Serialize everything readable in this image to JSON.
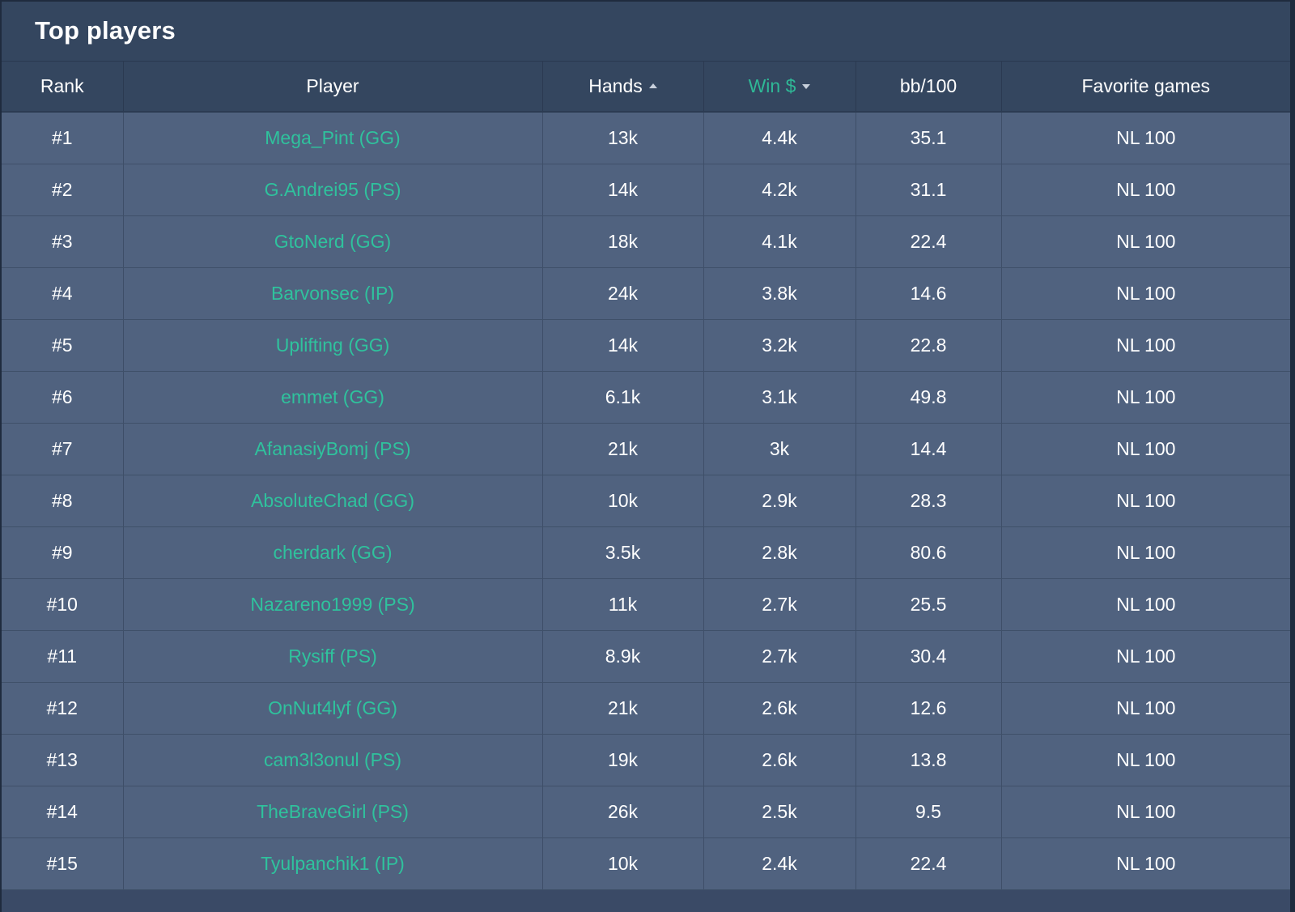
{
  "page": {
    "title": "Top players"
  },
  "colors": {
    "accent": "#2fc29d",
    "panel_bg": "#3a4a66",
    "row_bg": "#50627f",
    "header_bg": "#34465f"
  },
  "table": {
    "columns": [
      {
        "label": "Rank",
        "sort": ""
      },
      {
        "label": "Player",
        "sort": ""
      },
      {
        "label": "Hands",
        "sort": "ascending"
      },
      {
        "label": "Win $",
        "sort": "descending"
      },
      {
        "label": "bb/100",
        "sort": ""
      },
      {
        "label": "Favorite games",
        "sort": ""
      }
    ],
    "rows": [
      {
        "rank": "#1",
        "player": "Mega_Pint (GG)",
        "hands": "13k",
        "win": "4.4k",
        "bb100": "35.1",
        "games": "NL 100"
      },
      {
        "rank": "#2",
        "player": "G.Andrei95 (PS)",
        "hands": "14k",
        "win": "4.2k",
        "bb100": "31.1",
        "games": "NL 100"
      },
      {
        "rank": "#3",
        "player": "GtoNerd (GG)",
        "hands": "18k",
        "win": "4.1k",
        "bb100": "22.4",
        "games": "NL 100"
      },
      {
        "rank": "#4",
        "player": "Barvonsec (IP)",
        "hands": "24k",
        "win": "3.8k",
        "bb100": "14.6",
        "games": "NL 100"
      },
      {
        "rank": "#5",
        "player": "Uplifting (GG)",
        "hands": "14k",
        "win": "3.2k",
        "bb100": "22.8",
        "games": "NL 100"
      },
      {
        "rank": "#6",
        "player": "emmet (GG)",
        "hands": "6.1k",
        "win": "3.1k",
        "bb100": "49.8",
        "games": "NL 100"
      },
      {
        "rank": "#7",
        "player": "AfanasiyBomj (PS)",
        "hands": "21k",
        "win": "3k",
        "bb100": "14.4",
        "games": "NL 100"
      },
      {
        "rank": "#8",
        "player": "AbsoluteChad (GG)",
        "hands": "10k",
        "win": "2.9k",
        "bb100": "28.3",
        "games": "NL 100"
      },
      {
        "rank": "#9",
        "player": "cherdark (GG)",
        "hands": "3.5k",
        "win": "2.8k",
        "bb100": "80.6",
        "games": "NL 100"
      },
      {
        "rank": "#10",
        "player": "Nazareno1999 (PS)",
        "hands": "11k",
        "win": "2.7k",
        "bb100": "25.5",
        "games": "NL 100"
      },
      {
        "rank": "#11",
        "player": "Rysiff (PS)",
        "hands": "8.9k",
        "win": "2.7k",
        "bb100": "30.4",
        "games": "NL 100"
      },
      {
        "rank": "#12",
        "player": "OnNut4lyf (GG)",
        "hands": "21k",
        "win": "2.6k",
        "bb100": "12.6",
        "games": "NL 100"
      },
      {
        "rank": "#13",
        "player": "cam3l3onul (PS)",
        "hands": "19k",
        "win": "2.6k",
        "bb100": "13.8",
        "games": "NL 100"
      },
      {
        "rank": "#14",
        "player": "TheBraveGirl (PS)",
        "hands": "26k",
        "win": "2.5k",
        "bb100": "9.5",
        "games": "NL 100"
      },
      {
        "rank": "#15",
        "player": "Tyulpanchik1 (IP)",
        "hands": "10k",
        "win": "2.4k",
        "bb100": "22.4",
        "games": "NL 100"
      }
    ]
  }
}
